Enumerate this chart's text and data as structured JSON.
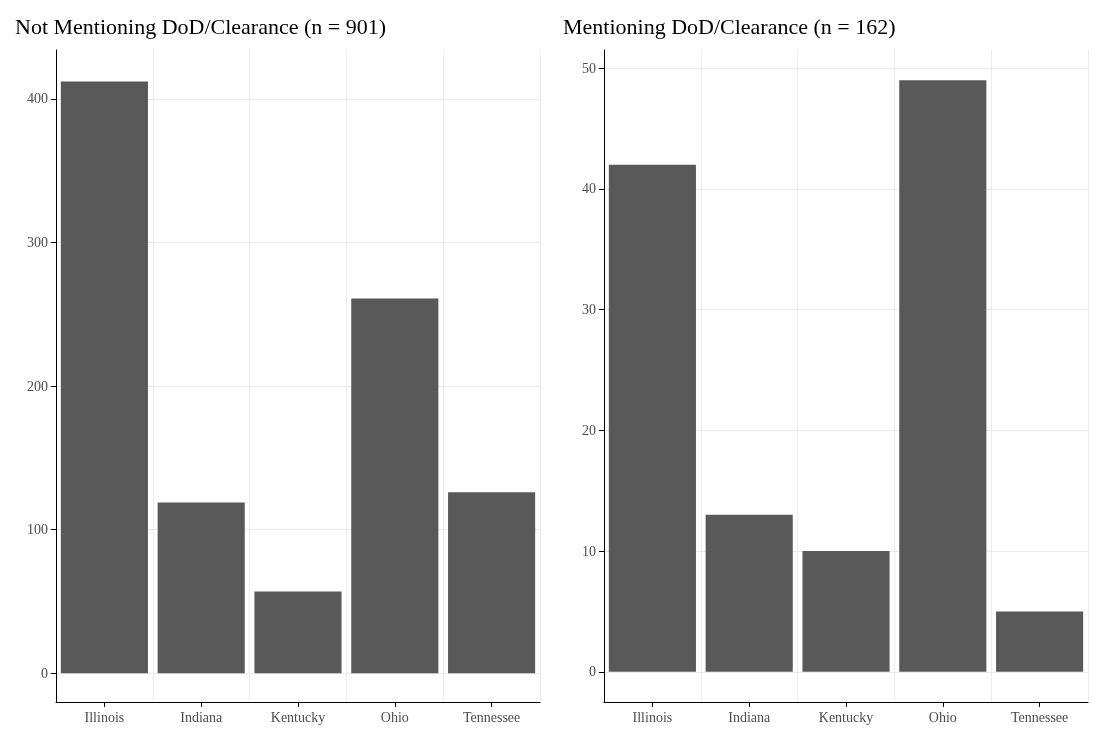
{
  "chart_data": [
    {
      "type": "bar",
      "title": "Not Mentioning DoD/Clearance (n = 901)",
      "categories": [
        "Illinois",
        "Indiana",
        "Kentucky",
        "Ohio",
        "Tennessee"
      ],
      "values": [
        412,
        119,
        57,
        261,
        126
      ],
      "color": "#595959",
      "ylim": [
        -20,
        434
      ],
      "yticks": [
        0,
        100,
        200,
        300,
        400
      ],
      "grid": true
    },
    {
      "type": "bar",
      "title": "Mentioning DoD/Clearance (n = 162)",
      "categories": [
        "Illinois",
        "Indiana",
        "Kentucky",
        "Ohio",
        "Tennessee"
      ],
      "values": [
        42,
        13,
        10,
        49,
        5
      ],
      "color": "#595959",
      "ylim": [
        -2.5,
        51.5
      ],
      "yticks": [
        0,
        10,
        20,
        30,
        40,
        50
      ],
      "grid": true
    }
  ]
}
